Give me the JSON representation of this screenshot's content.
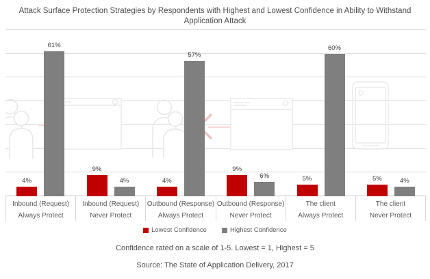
{
  "title": "Attack Surface Protection Strategies by Respondents with Highest and Lowest Confidence in Ability to Withstand Application Attack",
  "chart_data": {
    "type": "bar",
    "title": "Attack Surface Protection Strategies by Respondents with Highest and Lowest Confidence in Ability to Withstand Application Attack",
    "categories": [
      [
        "Inbound (Request)",
        "Always Protect"
      ],
      [
        "Inbound (Request)",
        "Never Protect"
      ],
      [
        "Outbound (Response)",
        "Always Protect"
      ],
      [
        "Outbound (Response)",
        "Never Protect"
      ],
      [
        "The client",
        "Always Protect"
      ],
      [
        "The client",
        "Never Protect"
      ]
    ],
    "series": [
      {
        "name": "Lowest Confidence",
        "color": "#C00000",
        "values": [
          4,
          9,
          4,
          9,
          5,
          5
        ]
      },
      {
        "name": "Highest Confidence",
        "color": "#7F7F7F",
        "values": [
          61,
          4,
          57,
          6,
          60,
          4
        ]
      }
    ],
    "xlabel": "",
    "ylabel": "",
    "ylim": [
      0,
      70
    ],
    "gridline_step": 10,
    "grid": true,
    "legend_position": "bottom",
    "data_label_suffix": "%",
    "axis_tick_labels_visible": false
  },
  "footer": {
    "note": "Confidence rated on a scale of 1-5. Lowest = 1, Highest = 5",
    "source": "Source: The State of Application Delivery, 2017"
  },
  "watermark": {
    "icons": [
      "people-icon",
      "arrow-right-icon",
      "browser-window-icon",
      "people-icon",
      "arrow-left-icon",
      "browser-window-icon",
      "smartphone-icon"
    ],
    "outline_color": "#e7e7e7",
    "arrow_color": "#efc2c2",
    "arrow_line_color": "#f6d9d9"
  },
  "colors": {
    "lowest_confidence": "#C00000",
    "highest_confidence": "#7F7F7F",
    "gridline": "#D9D9D9",
    "text": "#4d4d4d"
  }
}
